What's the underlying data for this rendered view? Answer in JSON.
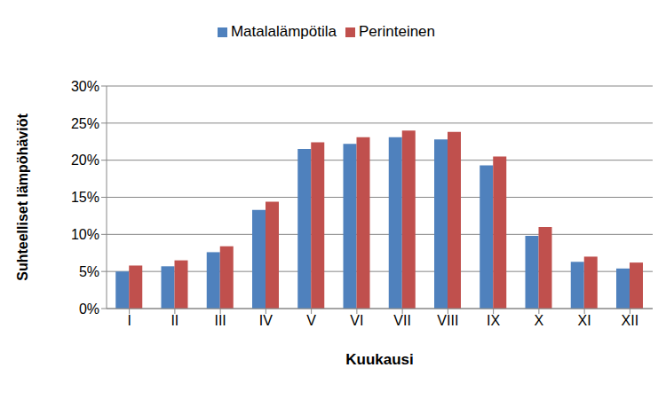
{
  "chart_data": {
    "type": "bar",
    "x_label": "Kuukausi",
    "y_label": "Suhteelliset lämpöhäviöt",
    "categories": [
      "I",
      "II",
      "III",
      "IV",
      "V",
      "VI",
      "VII",
      "VIII",
      "IX",
      "X",
      "XI",
      "XII"
    ],
    "series": [
      {
        "name": "Matalalämpötila",
        "color": "#4f81bd",
        "values": [
          5.0,
          5.7,
          7.6,
          13.3,
          21.5,
          22.2,
          23.1,
          22.8,
          19.3,
          9.8,
          6.3,
          5.4
        ]
      },
      {
        "name": "Perinteinen",
        "color": "#c0504d",
        "values": [
          5.8,
          6.5,
          8.4,
          14.4,
          22.4,
          23.1,
          24.0,
          23.8,
          20.5,
          11.0,
          7.0,
          6.2
        ]
      }
    ],
    "ylim": [
      0,
      30
    ],
    "yticks": [
      {
        "value": 0,
        "label": "0%"
      },
      {
        "value": 5,
        "label": "5%"
      },
      {
        "value": 10,
        "label": "10%"
      },
      {
        "value": 15,
        "label": "15%"
      },
      {
        "value": 20,
        "label": "20%"
      },
      {
        "value": 25,
        "label": "25%"
      },
      {
        "value": 30,
        "label": "30%"
      }
    ],
    "grid": true,
    "legend": "top"
  }
}
